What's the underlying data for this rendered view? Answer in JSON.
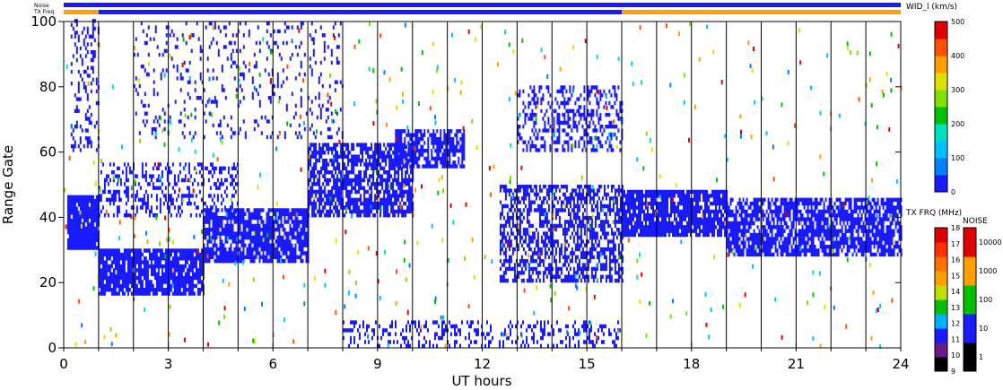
{
  "chart_data": {
    "type": "heatmap",
    "xlabel": "UT hours",
    "ylabel": "Range Gate",
    "xlim": [
      0,
      24
    ],
    "ylim": [
      0,
      100
    ],
    "x_ticks": [
      0,
      3,
      6,
      9,
      12,
      15,
      18,
      21,
      24
    ],
    "y_ticks": [
      0,
      20,
      40,
      60,
      80,
      100
    ],
    "scan_boundaries_hours": [
      1,
      2,
      3,
      4,
      5,
      6,
      7,
      8,
      9,
      10,
      11,
      12,
      13,
      14,
      15,
      16,
      17,
      18,
      19,
      20,
      21,
      22,
      23,
      24
    ],
    "width_scale": {
      "title": "WID_l (km/s)",
      "ticks": [
        0,
        100,
        200,
        300,
        400,
        500
      ],
      "colors": [
        "#1a1aff",
        "#0080ff",
        "#00c0ff",
        "#00e0c0",
        "#00c000",
        "#80e000",
        "#e0e000",
        "#ffa000",
        "#ff5000",
        "#e00000"
      ]
    },
    "tx_freq_scale": {
      "title": "TX FRQ (MHz)",
      "ticks": [
        "9",
        "10",
        "11",
        "12",
        "13",
        "14",
        "15",
        "16",
        "17",
        "18"
      ],
      "colors": [
        "#000000",
        "#6a1a8a",
        "#1a1aff",
        "#00b0ff",
        "#00c000",
        "#c0e000",
        "#ffa000",
        "#ff7000",
        "#ff3000",
        "#e00000"
      ]
    },
    "noise_scale": {
      "title": "NOISE",
      "ticks": [
        "1",
        "10",
        "100",
        "1000",
        "10000"
      ],
      "colors": [
        "#000000",
        "#1a1aff",
        "#00c000",
        "#ffa000",
        "#e00000"
      ]
    },
    "status_bars": {
      "noise_label": "Noise",
      "freq_label": "TX Freq",
      "noise_color": "#1a1aff",
      "freq_segments": [
        {
          "start": 0,
          "end": 1,
          "color": "#ffa000"
        },
        {
          "start": 1,
          "end": 16,
          "color": "#1a1aff"
        },
        {
          "start": 16,
          "end": 24,
          "color": "#ffa000"
        }
      ]
    },
    "echo_regions": [
      {
        "start": 0.1,
        "end": 1.0,
        "g0": 30,
        "g1": 46,
        "density": 0.95
      },
      {
        "start": 1.0,
        "end": 4.0,
        "g0": 16,
        "g1": 30,
        "density": 0.85
      },
      {
        "start": 4.0,
        "end": 7.0,
        "g0": 26,
        "g1": 42,
        "density": 0.8
      },
      {
        "start": 1.0,
        "end": 5.0,
        "g0": 40,
        "g1": 56,
        "density": 0.35
      },
      {
        "start": 7.0,
        "end": 10.0,
        "g0": 40,
        "g1": 62,
        "density": 0.7
      },
      {
        "start": 9.5,
        "end": 11.5,
        "g0": 55,
        "g1": 66,
        "density": 0.7
      },
      {
        "start": 12.5,
        "end": 16.0,
        "g0": 20,
        "g1": 50,
        "density": 0.55
      },
      {
        "start": 13.0,
        "end": 16.0,
        "g0": 60,
        "g1": 80,
        "density": 0.35
      },
      {
        "start": 16.0,
        "end": 19.0,
        "g0": 34,
        "g1": 48,
        "density": 0.85
      },
      {
        "start": 19.0,
        "end": 24.0,
        "g0": 28,
        "g1": 46,
        "density": 0.75
      },
      {
        "start": 0.2,
        "end": 1.0,
        "g0": 60,
        "g1": 100,
        "density": 0.25
      },
      {
        "start": 2.0,
        "end": 8.0,
        "g0": 64,
        "g1": 100,
        "density": 0.12
      },
      {
        "start": 8.0,
        "end": 16.0,
        "g0": 0,
        "g1": 8,
        "density": 0.25
      }
    ]
  }
}
